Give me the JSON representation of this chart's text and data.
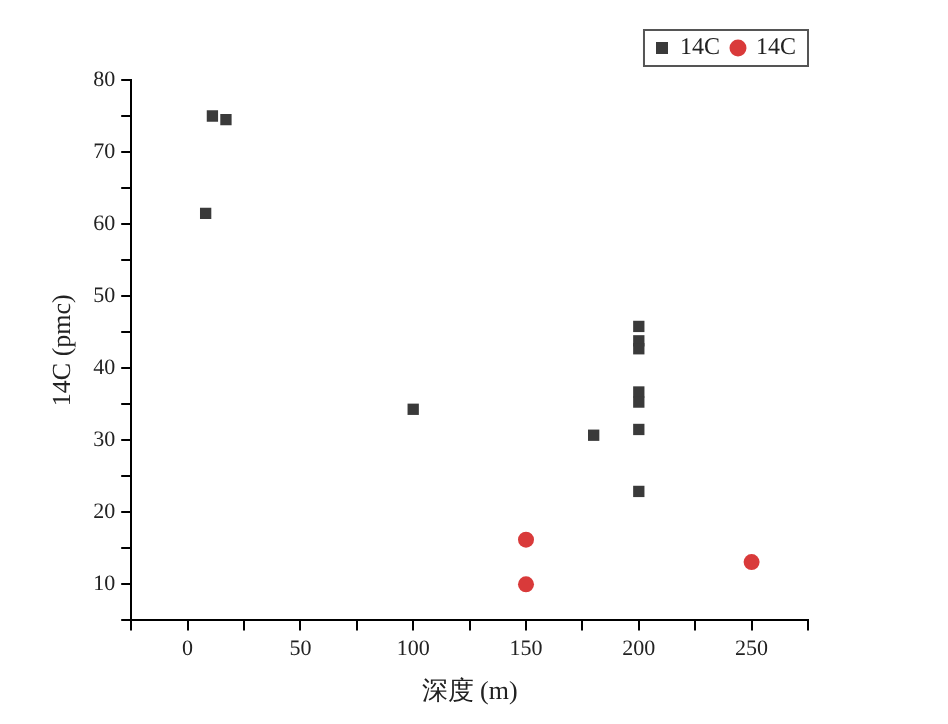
{
  "chart_data": {
    "type": "scatter",
    "xlabel": "深度 (m)",
    "ylabel": "14C (pmc)",
    "xlim": [
      -25,
      275
    ],
    "xticks": [
      {
        "value": -25,
        "label": null
      },
      0,
      {
        "value": 25,
        "label": null
      },
      50,
      {
        "value": 75,
        "label": null
      },
      100,
      {
        "value": 125,
        "label": null
      },
      150,
      {
        "value": 175,
        "label": null
      },
      200,
      {
        "value": 225,
        "label": null
      },
      250,
      {
        "value": 275,
        "label": null
      }
    ],
    "ylim": [
      5,
      80
    ],
    "yticks": [
      {
        "value": 5,
        "label": null
      },
      10,
      {
        "value": 15,
        "label": null
      },
      20,
      {
        "value": 25,
        "label": null
      },
      30,
      {
        "value": 35,
        "label": null
      },
      40,
      {
        "value": 45,
        "label": null
      },
      50,
      {
        "value": 55,
        "label": null
      },
      60,
      {
        "value": 65,
        "label": null
      },
      70,
      {
        "value": 75,
        "label": null
      },
      80
    ],
    "grid": false,
    "legend": "top right",
    "series": [
      {
        "name": "14C",
        "color": "#3a3a3a",
        "marker": "square",
        "x": [
          8,
          11,
          17,
          100,
          180,
          200,
          200,
          200,
          200,
          200,
          200,
          200
        ],
        "values": [
          61.5,
          75,
          74.5,
          34.3,
          30.7,
          45.8,
          43.8,
          42.7,
          36.7,
          35.3,
          31.5,
          22.9
        ]
      },
      {
        "name": "14C",
        "color": "#d93a3a",
        "marker": "circle",
        "x": [
          150,
          150,
          250
        ],
        "values": [
          16.2,
          10,
          13.1
        ]
      }
    ]
  }
}
